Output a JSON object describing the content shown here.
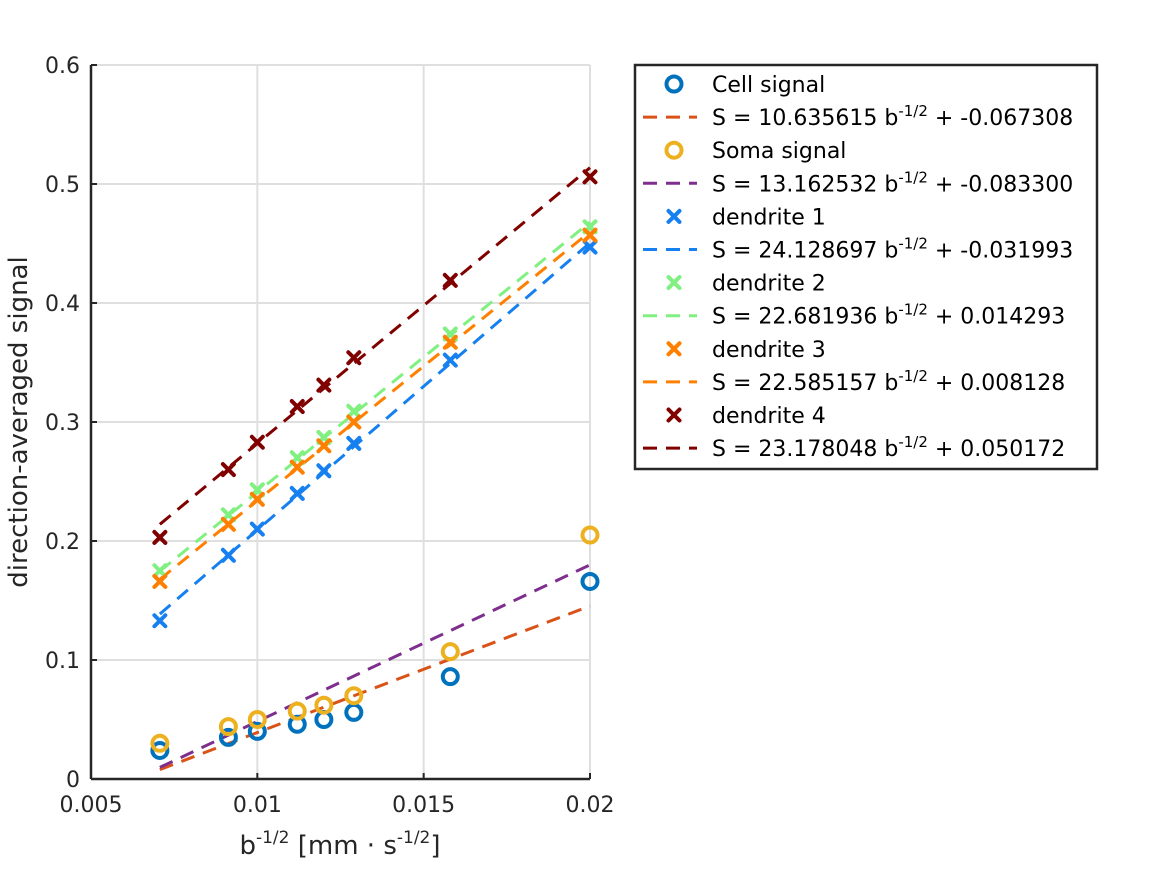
{
  "chart_data": {
    "type": "scatter",
    "title": "",
    "xlabel": {
      "base": "b",
      "sup": "-1/2",
      "mid": " [mm · s",
      "sup2": "-1/2",
      "end": "]"
    },
    "ylabel": "direction-averaged signal",
    "xlim": [
      0.005,
      0.02
    ],
    "ylim": [
      0,
      0.6
    ],
    "xticks": [
      0.005,
      0.01,
      0.015,
      0.02
    ],
    "xtick_labels": [
      "0.005",
      "0.01",
      "0.015",
      "0.02"
    ],
    "yticks": [
      0,
      0.1,
      0.2,
      0.3,
      0.4,
      0.5,
      0.6
    ],
    "ytick_labels": [
      "0",
      "0.1",
      "0.2",
      "0.3",
      "0.4",
      "0.5",
      "0.6"
    ],
    "grid": true,
    "legend_position": "outside-right",
    "x": [
      0.00707,
      0.00913,
      0.01,
      0.0112,
      0.012,
      0.0129,
      0.0158,
      0.02
    ],
    "series": [
      {
        "name": "Cell signal",
        "marker": "o",
        "color": "#0072BD",
        "values": [
          0.024,
          0.035,
          0.04,
          0.046,
          0.05,
          0.056,
          0.086,
          0.166
        ]
      },
      {
        "name": "Soma signal",
        "marker": "o",
        "color": "#EDB120",
        "values": [
          0.03,
          0.044,
          0.05,
          0.057,
          0.062,
          0.07,
          0.107,
          0.205
        ]
      },
      {
        "name": "dendrite 1",
        "marker": "x",
        "color": "#1680F0",
        "values": [
          0.133,
          0.188,
          0.21,
          0.24,
          0.259,
          0.282,
          0.352,
          0.447
        ]
      },
      {
        "name": "dendrite 2",
        "marker": "x",
        "color": "#80F080",
        "values": [
          0.175,
          0.222,
          0.243,
          0.27,
          0.287,
          0.309,
          0.374,
          0.464
        ]
      },
      {
        "name": "dendrite 3",
        "marker": "x",
        "color": "#FF8000",
        "values": [
          0.166,
          0.214,
          0.235,
          0.262,
          0.28,
          0.3,
          0.367,
          0.457
        ]
      },
      {
        "name": "dendrite 4",
        "marker": "x",
        "color": "#800000",
        "values": [
          0.203,
          0.26,
          0.283,
          0.313,
          0.331,
          0.354,
          0.419,
          0.506
        ]
      }
    ],
    "fits": [
      {
        "prefix": "S = 10.635615 b",
        "sup": "-1/2",
        "suffix": " + -0.067308",
        "slope": 10.635615,
        "intercept": -0.067308,
        "color": "#D95319"
      },
      {
        "prefix": "S = 13.162532 b",
        "sup": "-1/2",
        "suffix": " + -0.083300",
        "slope": 13.162532,
        "intercept": -0.0833,
        "color": "#7E2F8E"
      },
      {
        "prefix": "S = 24.128697 b",
        "sup": "-1/2",
        "suffix": " + -0.031993",
        "slope": 24.128697,
        "intercept": -0.031993,
        "color": "#1680F0"
      },
      {
        "prefix": "S = 22.681936 b",
        "sup": "-1/2",
        "suffix": " + 0.014293",
        "slope": 22.681936,
        "intercept": 0.014293,
        "color": "#80F080"
      },
      {
        "prefix": "S = 22.585157 b",
        "sup": "-1/2",
        "suffix": " + 0.008128",
        "slope": 22.585157,
        "intercept": 0.008128,
        "color": "#FF8000"
      },
      {
        "prefix": "S = 23.178048 b",
        "sup": "-1/2",
        "suffix": " + 0.050172",
        "slope": 23.178048,
        "intercept": 0.050172,
        "color": "#800000"
      }
    ],
    "fit_x_range": [
      0.00707,
      0.02
    ]
  }
}
